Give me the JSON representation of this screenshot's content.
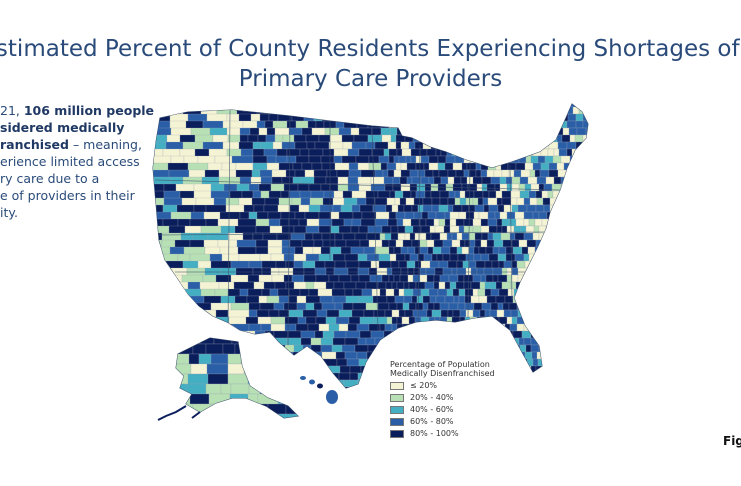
{
  "title": {
    "line1": "Estimated Percent of County Residents Experiencing Shortages of",
    "line2": "Primary Care Providers"
  },
  "sidebar": {
    "lines": [
      {
        "pre": "21, ",
        "bold": "106 million people",
        "post": ""
      },
      {
        "pre": "",
        "bold": "sidered medically",
        "post": ""
      },
      {
        "pre": "",
        "bold": "ranchised",
        "post": " – meaning,"
      },
      {
        "pre": "erience limited access",
        "bold": "",
        "post": ""
      },
      {
        "pre": "ry care due to a",
        "bold": "",
        "post": ""
      },
      {
        "pre": "e of providers in their",
        "bold": "",
        "post": ""
      },
      {
        "pre": "ity.",
        "bold": "",
        "post": ""
      }
    ]
  },
  "legend": {
    "title_line1": "Percentage of Population",
    "title_line2": "Medically Disenfranchised",
    "items": [
      {
        "label": "≤ 20%",
        "color": "#f4f4d4"
      },
      {
        "label": "20% - 40%",
        "color": "#b7e0b5"
      },
      {
        "label": "40% - 60%",
        "color": "#44aec2"
      },
      {
        "label": "60% - 80%",
        "color": "#2a5fa8"
      },
      {
        "label": "80% - 100%",
        "color": "#0b1e5c"
      }
    ]
  },
  "figure_label": "Fig",
  "colors": {
    "title": "#2a4b7a",
    "map_background": "#0b1e5c",
    "state_border": "#3c4f6a"
  }
}
